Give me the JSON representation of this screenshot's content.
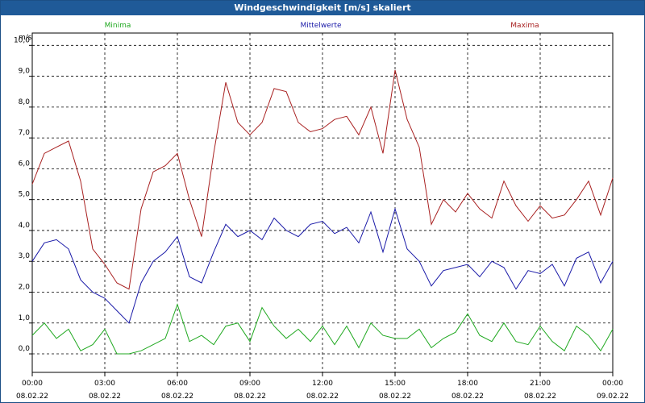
{
  "window": {
    "title": "Windgeschwindigkeit [m/s] skaliert"
  },
  "colors": {
    "minima": "#1fa81f",
    "mittelwerte": "#1a1aa8",
    "maxima": "#a82020",
    "title_bg": "#1f5a98"
  },
  "chart_data": {
    "type": "line",
    "title": "Windgeschwindigkeit [m/s] skaliert",
    "ylabel": "m/s",
    "xlabel": "",
    "ylim": [
      -0.6,
      10.4
    ],
    "xlim": [
      "08.02.22 00:00",
      "09.02.22 00:00"
    ],
    "grid": true,
    "legend_position": "top",
    "yticks": [
      "0,0",
      "1,0",
      "2,0",
      "3,0",
      "4,0",
      "5,0",
      "6,0",
      "7,0",
      "8,0",
      "9,0",
      "10,0"
    ],
    "ytick_values": [
      0,
      1,
      2,
      3,
      4,
      5,
      6,
      7,
      8,
      9,
      10
    ],
    "xticks": [
      {
        "time": "00:00",
        "date": "08.02.22"
      },
      {
        "time": "03:00",
        "date": "08.02.22"
      },
      {
        "time": "06:00",
        "date": "08.02.22"
      },
      {
        "time": "09:00",
        "date": "08.02.22"
      },
      {
        "time": "12:00",
        "date": "08.02.22"
      },
      {
        "time": "15:00",
        "date": "08.02.22"
      },
      {
        "time": "18:00",
        "date": "08.02.22"
      },
      {
        "time": "21:00",
        "date": "08.02.22"
      },
      {
        "time": "00:00",
        "date": "09.02.22"
      }
    ],
    "x_hours": [
      0,
      0.5,
      1,
      1.5,
      2,
      2.5,
      3,
      3.5,
      4,
      4.5,
      5,
      5.5,
      6,
      6.5,
      7,
      7.5,
      8,
      8.5,
      9,
      9.5,
      10,
      10.5,
      11,
      11.5,
      12,
      12.5,
      13,
      13.5,
      14,
      14.5,
      15,
      15.5,
      16,
      16.5,
      17,
      17.5,
      18,
      18.5,
      19,
      19.5,
      20,
      20.5,
      21,
      21.5,
      22,
      22.5,
      23,
      23.5,
      24
    ],
    "series": [
      {
        "name": "Minima",
        "values": [
          0.6,
          1.0,
          0.5,
          0.8,
          0.1,
          0.3,
          0.8,
          0.0,
          0.0,
          0.1,
          0.3,
          0.5,
          1.6,
          0.4,
          0.6,
          0.3,
          0.9,
          1.0,
          0.4,
          1.5,
          0.9,
          0.5,
          0.8,
          0.4,
          0.9,
          0.3,
          0.9,
          0.2,
          1.0,
          0.6,
          0.5,
          0.5,
          0.8,
          0.2,
          0.5,
          0.7,
          1.3,
          0.6,
          0.4,
          1.0,
          0.4,
          0.3,
          0.9,
          0.4,
          0.1,
          0.9,
          0.6,
          0.1,
          0.8
        ]
      },
      {
        "name": "Mittelwerte",
        "values": [
          3.0,
          3.6,
          3.7,
          3.4,
          2.4,
          2.0,
          1.8,
          1.4,
          1.0,
          2.3,
          3.0,
          3.3,
          3.8,
          2.5,
          2.3,
          3.3,
          4.2,
          3.8,
          4.0,
          3.7,
          4.4,
          4.0,
          3.8,
          4.2,
          4.3,
          3.9,
          4.1,
          3.6,
          4.6,
          3.3,
          4.7,
          3.4,
          3.0,
          2.2,
          2.7,
          2.8,
          2.9,
          2.5,
          3.0,
          2.8,
          2.1,
          2.7,
          2.6,
          2.9,
          2.2,
          3.1,
          3.3,
          2.3,
          3.0
        ]
      },
      {
        "name": "Maxima",
        "values": [
          5.5,
          6.5,
          6.7,
          6.9,
          5.6,
          3.4,
          2.9,
          2.3,
          2.1,
          4.7,
          5.9,
          6.1,
          6.5,
          5.0,
          3.8,
          6.5,
          8.8,
          7.5,
          7.1,
          7.5,
          8.6,
          8.5,
          7.5,
          7.2,
          7.3,
          7.6,
          7.7,
          7.1,
          8.0,
          6.5,
          9.2,
          7.6,
          6.7,
          4.2,
          5.0,
          4.6,
          5.2,
          4.7,
          4.4,
          5.6,
          4.8,
          4.3,
          4.8,
          4.4,
          4.5,
          5.0,
          5.6,
          4.5,
          5.7
        ]
      }
    ]
  }
}
